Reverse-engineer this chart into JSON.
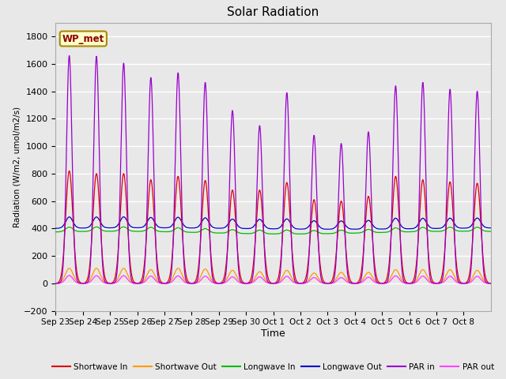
{
  "title": "Solar Radiation",
  "ylabel": "Radiation (W/m2, umol/m2/s)",
  "xlabel": "Time",
  "ylim": [
    -200,
    1900
  ],
  "yticks": [
    -200,
    0,
    200,
    400,
    600,
    800,
    1000,
    1200,
    1400,
    1600,
    1800
  ],
  "plot_bg_color": "#e8e8e8",
  "grid_color": "#ffffff",
  "legend_label": "WP_met",
  "series_colors": {
    "shortwave_in": "#dd0000",
    "shortwave_out": "#ff9900",
    "longwave_in": "#00bb00",
    "longwave_out": "#0000cc",
    "par_in": "#9900cc",
    "par_out": "#ff44ff"
  },
  "series_labels": {
    "shortwave_in": "Shortwave In",
    "shortwave_out": "Shortwave Out",
    "longwave_in": "Longwave In",
    "longwave_out": "Longwave Out",
    "par_in": "PAR in",
    "par_out": "PAR out"
  },
  "xtick_labels": [
    "Sep 23",
    "Sep 24",
    "Sep 25",
    "Sep 26",
    "Sep 27",
    "Sep 28",
    "Sep 29",
    "Sep 30",
    "Oct 1",
    "Oct 2",
    "Oct 3",
    "Oct 4",
    "Oct 5",
    "Oct 6",
    "Oct 7",
    "Oct 8"
  ],
  "num_days": 16,
  "points_per_day": 144,
  "sw_in_peaks": [
    820,
    800,
    800,
    755,
    780,
    750,
    680,
    680,
    735,
    610,
    600,
    635,
    780,
    755,
    740,
    730
  ],
  "sw_out_peaks": [
    110,
    110,
    110,
    100,
    110,
    105,
    95,
    85,
    95,
    75,
    80,
    80,
    100,
    100,
    100,
    95
  ],
  "par_in_peaks": [
    1660,
    1655,
    1605,
    1500,
    1535,
    1465,
    1260,
    1150,
    1390,
    1080,
    1020,
    1105,
    1440,
    1465,
    1415,
    1400
  ],
  "lw_base": 370,
  "lw_out_base": 400,
  "lw_in_amplitude": 30,
  "lw_out_amplitude": 80
}
